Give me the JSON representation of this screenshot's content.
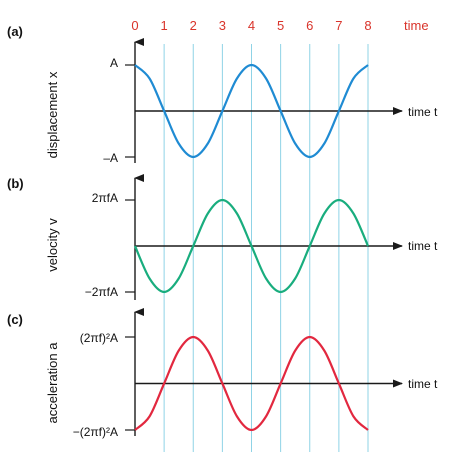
{
  "colors": {
    "displacement": "#1f8bd3",
    "velocity": "#19ad7e",
    "acceleration": "#e2283f",
    "gridline": "#8fd3e6",
    "axis": "#1a1a1a",
    "top_axis_text": "#d9342b"
  },
  "top_axis": {
    "ticks": [
      "0",
      "1",
      "2",
      "3",
      "4",
      "5",
      "6",
      "7",
      "8"
    ],
    "label": "time"
  },
  "chart_data": [
    {
      "type": "line",
      "panel_label": "(a)",
      "ylabel": "displacement x",
      "xlabel": "time t",
      "ytick_labels": [
        "A",
        "–A"
      ],
      "xlim": [
        0,
        8
      ],
      "ylim": [
        -1,
        1
      ],
      "series": [
        {
          "x": [
            0,
            0.5,
            1,
            1.5,
            2,
            2.5,
            3,
            3.5,
            4,
            4.5,
            5,
            5.5,
            6,
            6.5,
            7,
            7.5,
            8
          ],
          "y": [
            1,
            0.707,
            0,
            -0.707,
            -1,
            -0.707,
            0,
            0.707,
            1,
            0.707,
            0,
            -0.707,
            -1,
            -0.707,
            0,
            0.707,
            1
          ]
        }
      ]
    },
    {
      "type": "line",
      "panel_label": "(b)",
      "ylabel": "velocity v",
      "xlabel": "time t",
      "ytick_labels": [
        "2πfA",
        "−2πfA"
      ],
      "xlim": [
        0,
        8
      ],
      "ylim": [
        -1,
        1
      ],
      "series": [
        {
          "x": [
            0,
            0.5,
            1,
            1.5,
            2,
            2.5,
            3,
            3.5,
            4,
            4.5,
            5,
            5.5,
            6,
            6.5,
            7,
            7.5,
            8
          ],
          "y": [
            0,
            -0.707,
            -1,
            -0.707,
            0,
            0.707,
            1,
            0.707,
            0,
            -0.707,
            -1,
            -0.707,
            0,
            0.707,
            1,
            0.707,
            0
          ]
        }
      ]
    },
    {
      "type": "line",
      "panel_label": "(c)",
      "ylabel": "acceleration a",
      "xlabel": "time t",
      "ytick_labels": [
        "(2πf)²A",
        "−(2πf)²A"
      ],
      "xlim": [
        0,
        8
      ],
      "ylim": [
        -1,
        1
      ],
      "series": [
        {
          "x": [
            0,
            0.5,
            1,
            1.5,
            2,
            2.5,
            3,
            3.5,
            4,
            4.5,
            5,
            5.5,
            6,
            6.5,
            7,
            7.5,
            8
          ],
          "y": [
            -1,
            -0.707,
            0,
            0.707,
            1,
            0.707,
            0,
            -0.707,
            -1,
            -0.707,
            0,
            0.707,
            1,
            0.707,
            0,
            -0.707,
            -1
          ]
        }
      ]
    }
  ]
}
